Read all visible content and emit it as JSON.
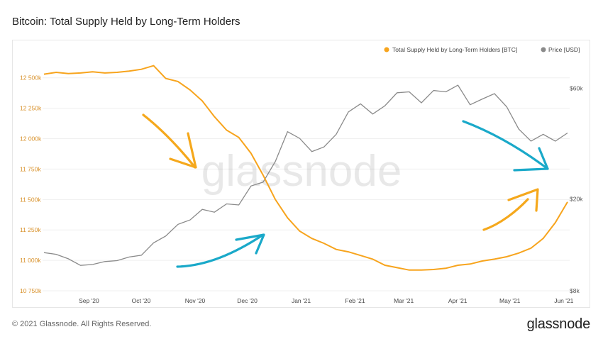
{
  "header": {
    "title": "Bitcoin: Total Supply Held by Long-Term Holders"
  },
  "footer": {
    "copyright": "© 2021 Glassnode. All Rights Reserved.",
    "logo": "glassnode"
  },
  "watermark": "glassnode",
  "colors": {
    "lth": "#f7a41d",
    "price": "#8a8a8a",
    "arrow_orange": "#f5a81c",
    "arrow_blue": "#1aa9c9"
  },
  "chart_data": {
    "type": "line",
    "title": "Bitcoin: Total Supply Held by Long-Term Holders",
    "legend": {
      "position": "top-right",
      "entries": [
        "Total Supply Held by Long-Term Holders [BTC]",
        "Price [USD]"
      ]
    },
    "x_ticks": [
      "Sep '20",
      "Oct '20",
      "Nov '20",
      "Dec '20",
      "Jan '21",
      "Feb '21",
      "Mar '21",
      "Apr '21",
      "May '21",
      "Jun '21"
    ],
    "y_left": {
      "ticks": [
        "10 750k",
        "11 000k",
        "11 250k",
        "11 500k",
        "11 750k",
        "12 000k",
        "12 250k",
        "12 500k"
      ],
      "range": [
        10750000,
        12650000
      ]
    },
    "y_right": {
      "scale": "log",
      "ticks": [
        "$8k",
        "$20k",
        "$60k"
      ],
      "range": [
        8000,
        80000
      ]
    },
    "x": [
      "2020-08-20",
      "2020-08-27",
      "2020-09-03",
      "2020-09-10",
      "2020-09-17",
      "2020-09-24",
      "2020-10-01",
      "2020-10-08",
      "2020-10-15",
      "2020-10-22",
      "2020-10-29",
      "2020-11-05",
      "2020-11-12",
      "2020-11-19",
      "2020-11-26",
      "2020-12-03",
      "2020-12-10",
      "2020-12-17",
      "2020-12-24",
      "2020-12-31",
      "2021-01-07",
      "2021-01-14",
      "2021-01-21",
      "2021-01-28",
      "2021-02-04",
      "2021-02-11",
      "2021-02-18",
      "2021-02-25",
      "2021-03-04",
      "2021-03-11",
      "2021-03-18",
      "2021-03-25",
      "2021-04-01",
      "2021-04-08",
      "2021-04-15",
      "2021-04-22",
      "2021-04-29",
      "2021-05-06",
      "2021-05-13",
      "2021-05-20",
      "2021-05-27",
      "2021-06-03",
      "2021-06-10",
      "2021-06-17"
    ],
    "series": [
      {
        "name": "Total Supply Held by Long-Term Holders [BTC]",
        "axis": "left",
        "values": [
          12530000,
          12545000,
          12535000,
          12540000,
          12550000,
          12540000,
          12545000,
          12555000,
          12570000,
          12600000,
          12495000,
          12470000,
          12400000,
          12310000,
          12180000,
          12070000,
          12010000,
          11880000,
          11700000,
          11500000,
          11350000,
          11240000,
          11180000,
          11140000,
          11090000,
          11070000,
          11040000,
          11010000,
          10960000,
          10940000,
          10920000,
          10920000,
          10925000,
          10935000,
          10960000,
          10970000,
          10995000,
          11010000,
          11030000,
          11060000,
          11100000,
          11180000,
          11310000,
          11480000
        ]
      },
      {
        "name": "Price [USD]",
        "axis": "right",
        "values": [
          11700,
          11500,
          11000,
          10300,
          10400,
          10700,
          10800,
          11200,
          11400,
          12900,
          13800,
          15500,
          16200,
          18000,
          17500,
          19000,
          18800,
          22700,
          23600,
          29000,
          39000,
          36500,
          32000,
          33500,
          38000,
          47500,
          51500,
          46500,
          50500,
          57500,
          58000,
          52000,
          58800,
          58000,
          62000,
          51000,
          54000,
          57000,
          50000,
          40000,
          35500,
          38000,
          35500,
          38500
        ]
      }
    ]
  }
}
